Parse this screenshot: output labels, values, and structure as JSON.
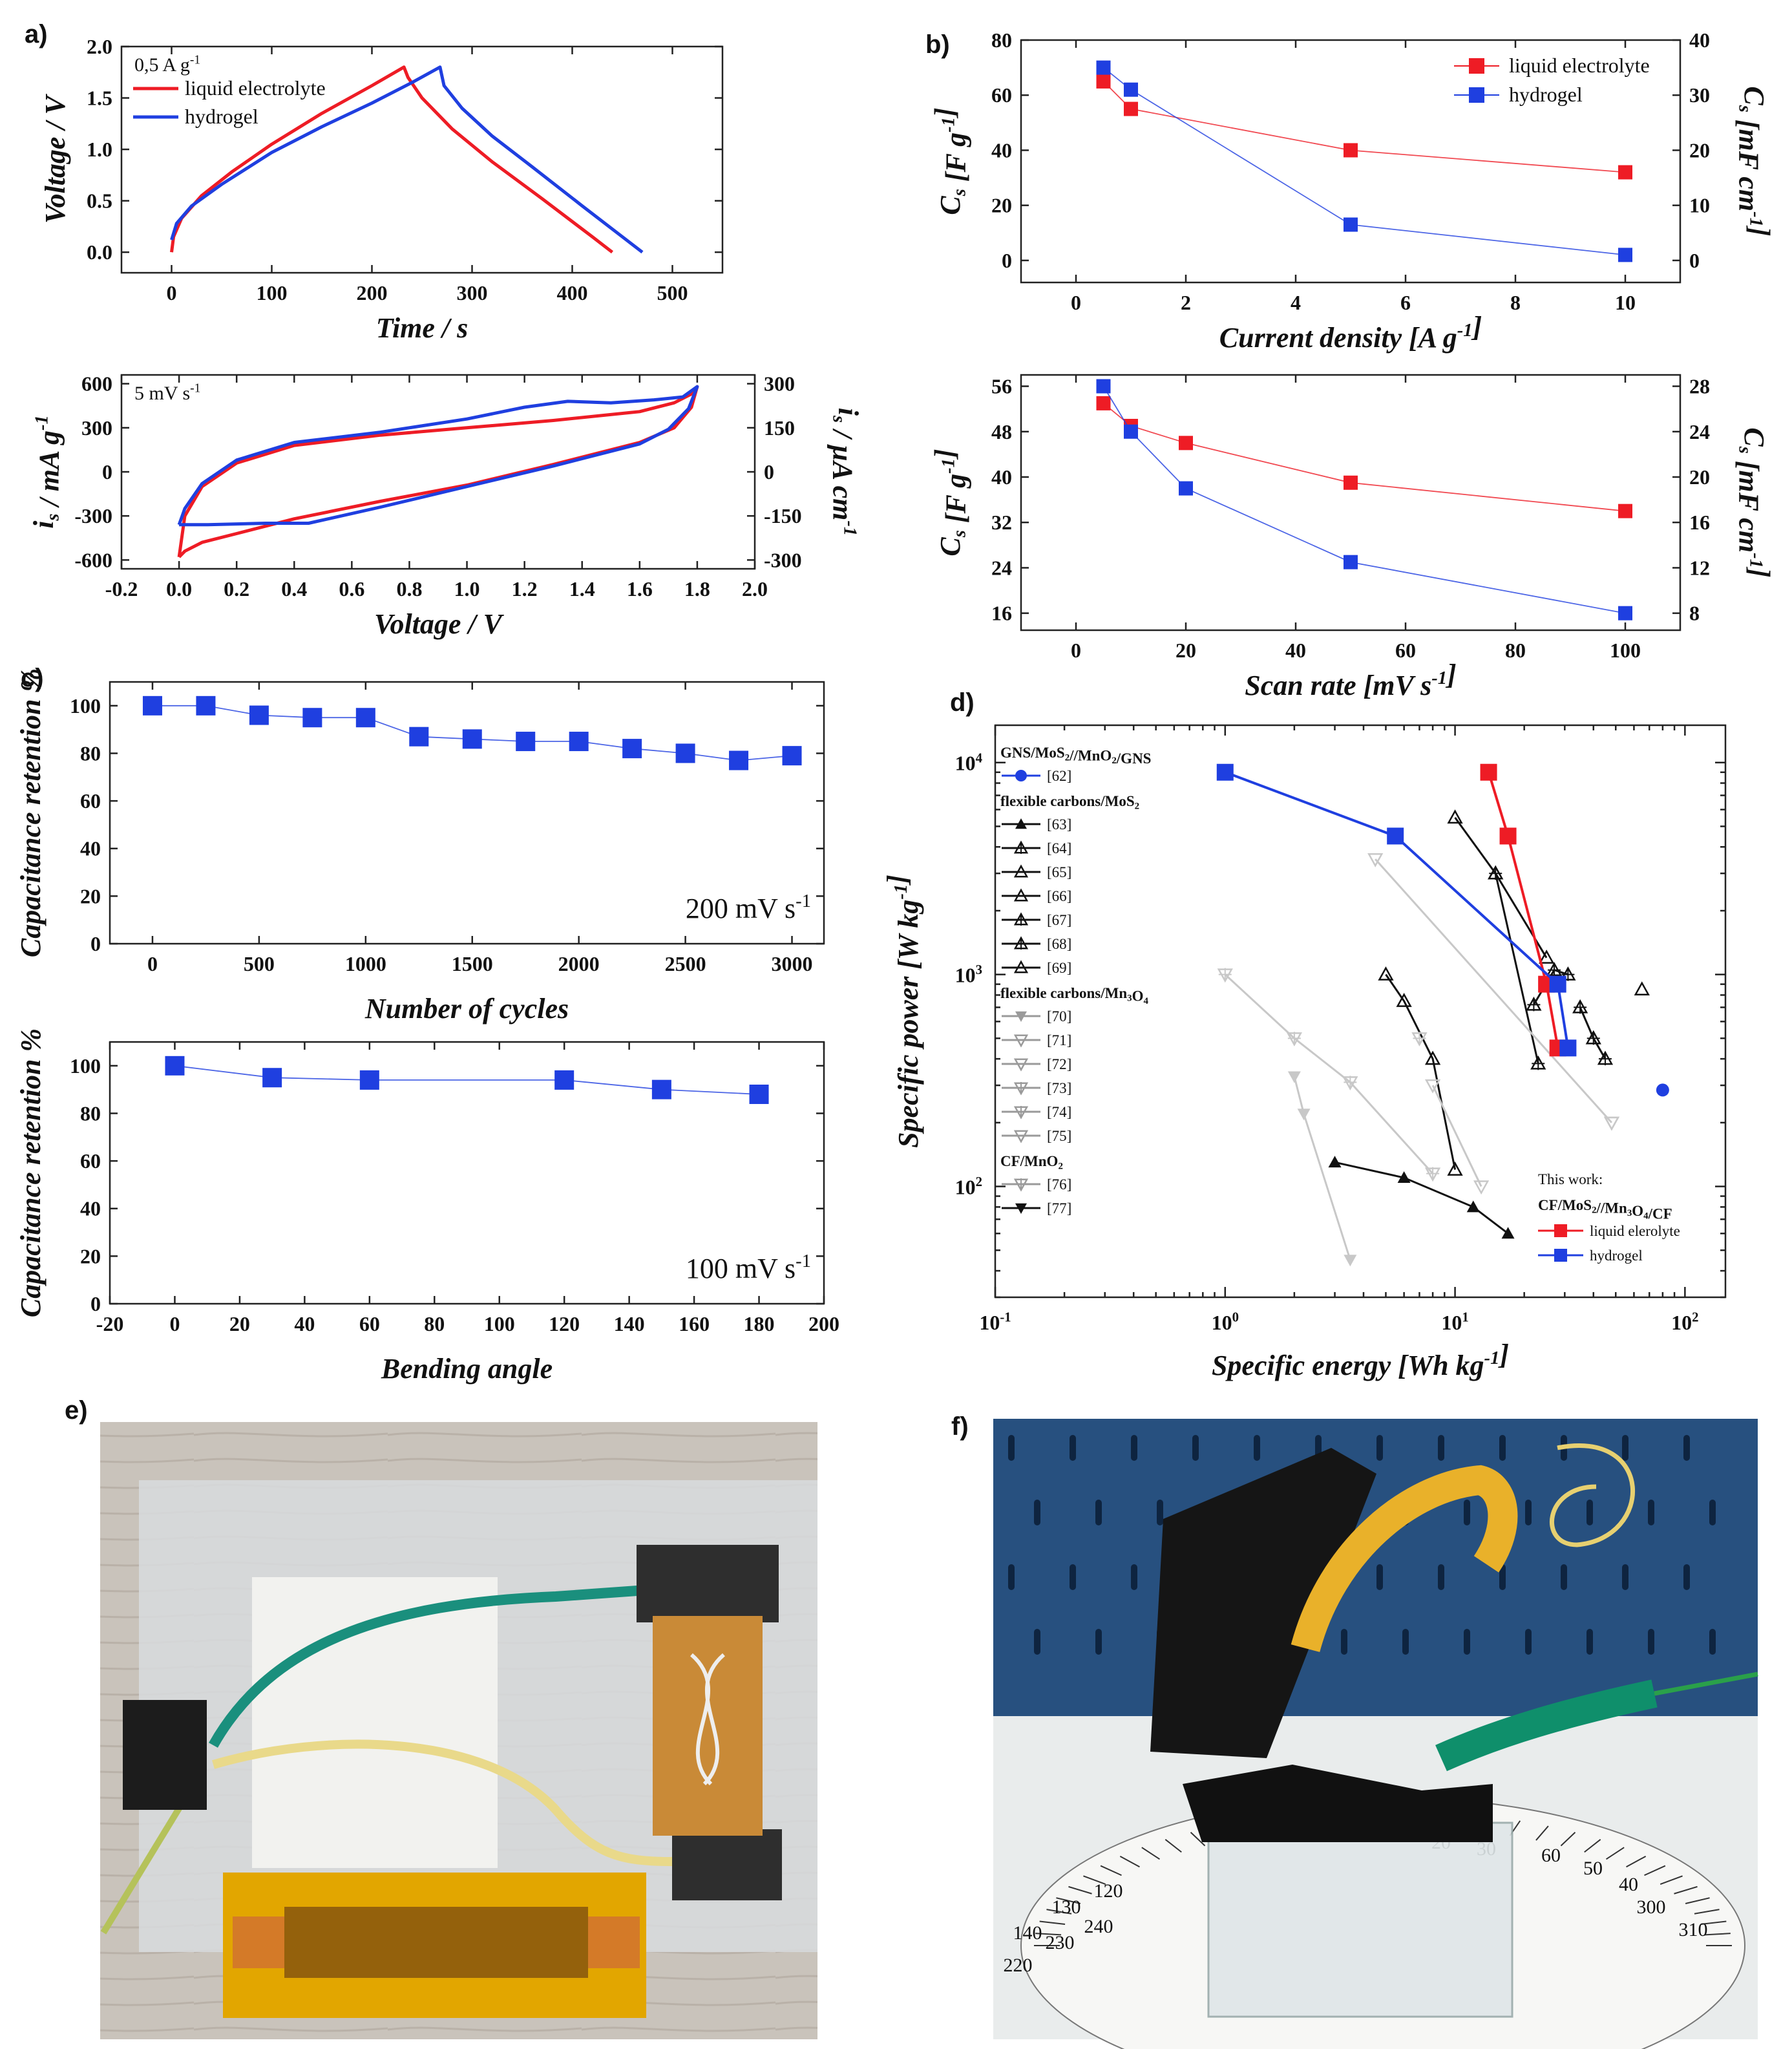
{
  "panels": {
    "a": "a)",
    "b": "b)",
    "c": "c)",
    "d": "d)",
    "e": "e)",
    "f": "f)"
  },
  "colors": {
    "red": "#ee1c25",
    "blue": "#1f3fe0",
    "black": "#111111",
    "gray": "#9a9a9a",
    "lightgray": "#c8c8c8"
  },
  "chart_data": [
    {
      "id": "a_gcd",
      "type": "line",
      "title": "",
      "annotation": "0,5 A g",
      "annotation_sup": "-1",
      "xlabel": "Time / s",
      "ylabel": "Voltage / V",
      "xlim": [
        -50,
        550
      ],
      "ylim": [
        -0.2,
        2.0
      ],
      "xticks": [
        0,
        100,
        200,
        300,
        400,
        500
      ],
      "yticks": [
        0.0,
        0.5,
        1.0,
        1.5,
        2.0
      ],
      "series": [
        {
          "name": "liquid electrolyte",
          "color": "red",
          "x": [
            0,
            2,
            10,
            30,
            60,
            100,
            150,
            200,
            232,
            236,
            250,
            280,
            320,
            370,
            420,
            440
          ],
          "y": [
            0.0,
            0.15,
            0.33,
            0.55,
            0.78,
            1.05,
            1.35,
            1.62,
            1.8,
            1.7,
            1.5,
            1.2,
            0.88,
            0.52,
            0.15,
            0.0
          ]
        },
        {
          "name": "hydrogel",
          "color": "blue",
          "x": [
            0,
            5,
            20,
            50,
            100,
            150,
            200,
            240,
            268,
            272,
            290,
            320,
            360,
            410,
            450,
            470
          ],
          "y": [
            0.12,
            0.28,
            0.45,
            0.66,
            0.97,
            1.22,
            1.45,
            1.65,
            1.8,
            1.62,
            1.4,
            1.13,
            0.83,
            0.45,
            0.15,
            0.0
          ]
        }
      ]
    },
    {
      "id": "a_cv",
      "type": "line",
      "annotation": "5 mV s",
      "annotation_sup": "-1",
      "xlabel": "Voltage / V",
      "ylabel": "i  / mA g",
      "ylabel_sub": "s",
      "ylabel_sup": "-1",
      "ylabel_right": "i  / µA cm",
      "ylabel_right_sub": "s",
      "ylabel_right_sup": "-1",
      "xlim": [
        -0.2,
        2.0
      ],
      "ylim": [
        -660,
        660
      ],
      "ylim_right": [
        -330,
        330
      ],
      "xticks": [
        -0.2,
        0.0,
        0.2,
        0.4,
        0.6,
        0.8,
        1.0,
        1.2,
        1.4,
        1.6,
        1.8,
        2.0
      ],
      "yticks": [
        -600,
        -300,
        0,
        300,
        600
      ],
      "yticks_right": [
        -300,
        -150,
        0,
        150,
        300
      ],
      "series": [
        {
          "name": "liquid electrolyte",
          "color": "red",
          "x": [
            0.0,
            0.02,
            0.08,
            0.2,
            0.4,
            0.7,
            1.0,
            1.3,
            1.6,
            1.72,
            1.78,
            1.8,
            1.78,
            1.72,
            1.6,
            1.3,
            1.0,
            0.7,
            0.4,
            0.2,
            0.08,
            0.02,
            0.0
          ],
          "y": [
            -580,
            -300,
            -100,
            60,
            180,
            250,
            300,
            350,
            410,
            470,
            530,
            580,
            440,
            300,
            200,
            50,
            -90,
            -200,
            -320,
            -420,
            -480,
            -540,
            -580
          ]
        },
        {
          "name": "hydrogel",
          "color": "blue",
          "x": [
            0.0,
            0.02,
            0.08,
            0.2,
            0.4,
            0.7,
            1.0,
            1.2,
            1.35,
            1.5,
            1.65,
            1.75,
            1.8,
            1.77,
            1.7,
            1.6,
            1.3,
            1.0,
            0.7,
            0.45,
            0.3,
            0.1,
            0.02,
            0.0
          ],
          "y": [
            -360,
            -250,
            -80,
            80,
            200,
            270,
            360,
            440,
            480,
            470,
            490,
            510,
            580,
            430,
            290,
            190,
            40,
            -100,
            -240,
            -350,
            -350,
            -360,
            -360,
            -360
          ]
        }
      ]
    },
    {
      "id": "b_current",
      "type": "line",
      "xlabel": "Current density [A g",
      "xlabel_sup": "-1",
      "xlabel_end": "]",
      "ylabel": "C  [F g",
      "ylabel_sub": "s",
      "ylabel_sup": "-1",
      "ylabel_end": "]",
      "ylabel_right": "C  [mF cm",
      "ylabel_right_sub": "s",
      "ylabel_right_sup": "-1",
      "ylabel_right_end": "]",
      "xlim": [
        -1,
        11
      ],
      "ylim": [
        -8,
        80
      ],
      "ylim_right": [
        -4,
        40
      ],
      "xticks": [
        0,
        2,
        4,
        6,
        8,
        10
      ],
      "yticks": [
        0,
        20,
        40,
        60,
        80
      ],
      "yticks_right": [
        0,
        10,
        20,
        30,
        40
      ],
      "series": [
        {
          "name": "liquid electrolyte",
          "color": "red",
          "x": [
            0.5,
            1,
            5,
            10
          ],
          "y": [
            65,
            55,
            40,
            32
          ]
        },
        {
          "name": "hydrogel",
          "color": "blue",
          "x": [
            0.5,
            1,
            5,
            10
          ],
          "y": [
            70,
            62,
            13,
            2
          ]
        }
      ]
    },
    {
      "id": "b_scan",
      "type": "line",
      "xlabel": "Scan rate [mV s",
      "xlabel_sup": "-1",
      "xlabel_end": "]",
      "ylabel": "C  [F g",
      "ylabel_sub": "s",
      "ylabel_sup": "-1",
      "ylabel_end": "]",
      "ylabel_right": "C  [mF cm",
      "ylabel_right_sub": "s",
      "ylabel_right_sup": "-1",
      "ylabel_right_end": "]",
      "xlim": [
        -10,
        110
      ],
      "ylim": [
        13,
        58
      ],
      "ylim_right": [
        6.5,
        29
      ],
      "xticks": [
        0,
        20,
        40,
        60,
        80,
        100
      ],
      "yticks": [
        16,
        24,
        32,
        40,
        48,
        56
      ],
      "yticks_right": [
        8,
        12,
        16,
        20,
        24,
        28
      ],
      "series": [
        {
          "name": "liquid electrolyte",
          "color": "red",
          "x": [
            5,
            10,
            20,
            50,
            100
          ],
          "y": [
            53,
            49,
            46,
            39,
            34
          ]
        },
        {
          "name": "hydrogel",
          "color": "blue",
          "x": [
            5,
            10,
            20,
            50,
            100
          ],
          "y": [
            56,
            48,
            38,
            25,
            16
          ]
        }
      ]
    },
    {
      "id": "c_cycles",
      "type": "line",
      "annotation": "200 mV s",
      "annotation_sup": "-1",
      "xlabel": "Number of cycles",
      "ylabel": "Capacitance retention %",
      "xlim": [
        -200,
        3150
      ],
      "ylim": [
        0,
        110
      ],
      "xticks": [
        0,
        500,
        1000,
        1500,
        2000,
        2500,
        3000
      ],
      "yticks": [
        0,
        20,
        40,
        60,
        80,
        100
      ],
      "series": [
        {
          "name": "retention",
          "color": "blue",
          "x": [
            0,
            250,
            500,
            750,
            1000,
            1250,
            1500,
            1750,
            2000,
            2250,
            2500,
            2750,
            3000
          ],
          "y": [
            100,
            100,
            96,
            95,
            95,
            87,
            86,
            85,
            85,
            82,
            80,
            77,
            79
          ]
        }
      ]
    },
    {
      "id": "c_bending",
      "type": "line",
      "annotation": "100 mV s",
      "annotation_sup": "-1",
      "xlabel": "Bending angle",
      "ylabel": "Capacitance retention %",
      "xlim": [
        -20,
        200
      ],
      "ylim": [
        0,
        110
      ],
      "xticks": [
        -20,
        0,
        20,
        40,
        60,
        80,
        100,
        120,
        140,
        160,
        180,
        200
      ],
      "yticks": [
        0,
        20,
        40,
        60,
        80,
        100
      ],
      "series": [
        {
          "name": "retention",
          "color": "blue",
          "x": [
            0,
            30,
            60,
            120,
            150,
            180
          ],
          "y": [
            100,
            95,
            94,
            94,
            90,
            88
          ]
        }
      ]
    },
    {
      "id": "d_ragone",
      "type": "scatter",
      "xlabel": "Specific energy [Wh kg",
      "xlabel_sup": "-1",
      "xlabel_end": "]",
      "ylabel": "Specific power [W kg",
      "ylabel_sup": "-1",
      "ylabel_end": "]",
      "xscale": "log",
      "yscale": "log",
      "xlim": [
        0.1,
        150
      ],
      "ylim": [
        30,
        15000
      ],
      "xticks": [
        "10",
        "10",
        "10",
        "10"
      ],
      "xtick_exp": [
        "-1",
        "0",
        "1",
        "2"
      ],
      "yticks": [
        "10",
        "10",
        "10"
      ],
      "ytick_exp": [
        "2",
        "3",
        "4"
      ],
      "legend_groups": [
        {
          "title": "GNS/MoS",
          "title_sub": "2",
          "title_mid": "//MnO",
          "title_sub2": "2",
          "title_end": "/GNS",
          "items": [
            {
              "label": "[62]",
              "marker": "circle",
              "color": "blue"
            }
          ]
        },
        {
          "title": "flexible carbons/MoS",
          "title_sub": "2",
          "items": [
            {
              "label": "[63]",
              "marker": "triangle",
              "color": "black"
            },
            {
              "label": "[64]",
              "marker": "tri-cross",
              "color": "black"
            },
            {
              "label": "[65]",
              "marker": "triangle-open",
              "color": "black"
            },
            {
              "label": "[66]",
              "marker": "triangle-open",
              "color": "black"
            },
            {
              "label": "[67]",
              "marker": "tri-cross",
              "color": "black"
            },
            {
              "label": "[68]",
              "marker": "tri-x",
              "color": "black"
            },
            {
              "label": "[69]",
              "marker": "triangle-open",
              "color": "black"
            }
          ]
        },
        {
          "title": "flexible carbons/Mn",
          "title_sub": "3",
          "title_mid": "O",
          "title_sub2": "4",
          "items": [
            {
              "label": "[70]",
              "marker": "tri-down",
              "color": "gray"
            },
            {
              "label": "[71]",
              "marker": "tri-down-open",
              "color": "gray"
            },
            {
              "label": "[72]",
              "marker": "tri-down-open",
              "color": "gray"
            },
            {
              "label": "[73]",
              "marker": "tri-down-cross",
              "color": "gray"
            },
            {
              "label": "[74]",
              "marker": "tri-down-x",
              "color": "gray"
            },
            {
              "label": "[75]",
              "marker": "tri-down-open",
              "color": "gray"
            }
          ]
        },
        {
          "title": "CF/MnO",
          "title_sub": "2",
          "items": [
            {
              "label": "[76]",
              "marker": "tri-down-cross",
              "color": "gray"
            },
            {
              "label": "[77]",
              "marker": "tri-down",
              "color": "black"
            }
          ]
        }
      ],
      "this_work": {
        "title": "This work:",
        "subtitle": "CF/MoS",
        "sub1": "2",
        "mid": "//Mn",
        "sub2": "3",
        "mid2": "O",
        "sub3": "4",
        "end": "/CF",
        "items": [
          {
            "label": "liquid elerolyte",
            "color": "red"
          },
          {
            "label": "hydrogel",
            "color": "blue"
          }
        ]
      },
      "series": [
        {
          "name": "liquid electrolyte (this work)",
          "color": "red",
          "marker": "square",
          "x": [
            14,
            17,
            25,
            28
          ],
          "y": [
            9000,
            4500,
            900,
            450
          ]
        },
        {
          "name": "hydrogel (this work)",
          "color": "blue",
          "marker": "square",
          "x": [
            1.0,
            5.5,
            28,
            31
          ],
          "y": [
            9000,
            4500,
            900,
            450
          ]
        },
        {
          "name": "[62]",
          "color": "blue",
          "marker": "circle",
          "x": [
            80
          ],
          "y": [
            285
          ]
        },
        {
          "name": "[63]",
          "color": "black",
          "marker": "triangle",
          "x": [
            3,
            6,
            12,
            17
          ],
          "y": [
            130,
            110,
            80,
            60
          ]
        },
        {
          "name": "[64]",
          "color": "black",
          "marker": "tri-cross",
          "x": [
            22,
            27,
            31
          ],
          "y": [
            720,
            1050,
            1000
          ]
        },
        {
          "name": "[65]",
          "color": "black",
          "marker": "triangle-open",
          "x": [
            10,
            15,
            25
          ],
          "y": [
            5500,
            3000,
            1200
          ]
        },
        {
          "name": "[66]",
          "color": "black",
          "marker": "triangle-open",
          "x": [
            5,
            6,
            8,
            10
          ],
          "y": [
            1000,
            750,
            400,
            120
          ]
        },
        {
          "name": "[67]",
          "color": "black",
          "marker": "tri-cross",
          "x": [
            35,
            40,
            45
          ],
          "y": [
            700,
            500,
            400
          ]
        },
        {
          "name": "[68]",
          "color": "black",
          "marker": "tri-x",
          "x": [
            15,
            23
          ],
          "y": [
            3000,
            380
          ]
        },
        {
          "name": "[69]",
          "color": "black",
          "marker": "triangle-open",
          "x": [
            65
          ],
          "y": [
            850
          ]
        },
        {
          "name": "[70]",
          "color": "lightgray",
          "marker": "tri-down",
          "x": [
            2.0,
            2.2,
            3.5
          ],
          "y": [
            330,
            220,
            45
          ]
        },
        {
          "name": "[71]",
          "color": "lightgray",
          "marker": "tri-down-open",
          "x": [
            4.5,
            48
          ],
          "y": [
            3500,
            200
          ]
        },
        {
          "name": "[72]",
          "color": "lightgray",
          "marker": "tri-down-open",
          "x": [
            8,
            13
          ],
          "y": [
            300,
            100
          ]
        },
        {
          "name": "[73]",
          "color": "lightgray",
          "marker": "tri-down-cross",
          "x": [
            1.0,
            2.0,
            3.5,
            8
          ],
          "y": [
            1000,
            500,
            310,
            115
          ]
        },
        {
          "name": "[74]",
          "color": "lightgray",
          "marker": "tri-down-x",
          "x": [
            7
          ],
          "y": [
            500
          ]
        },
        {
          "name": "[75]",
          "color": "lightgray",
          "marker": "tri-down-open",
          "x": [
            48
          ],
          "y": [
            200
          ]
        }
      ]
    }
  ],
  "photos": {
    "e": {
      "description_hidden": ""
    },
    "f": {
      "dial_numbers": [
        "140",
        "130",
        "120",
        "220",
        "230",
        "240",
        "300",
        "310",
        "60",
        "50",
        "40",
        "30",
        "20"
      ]
    }
  }
}
